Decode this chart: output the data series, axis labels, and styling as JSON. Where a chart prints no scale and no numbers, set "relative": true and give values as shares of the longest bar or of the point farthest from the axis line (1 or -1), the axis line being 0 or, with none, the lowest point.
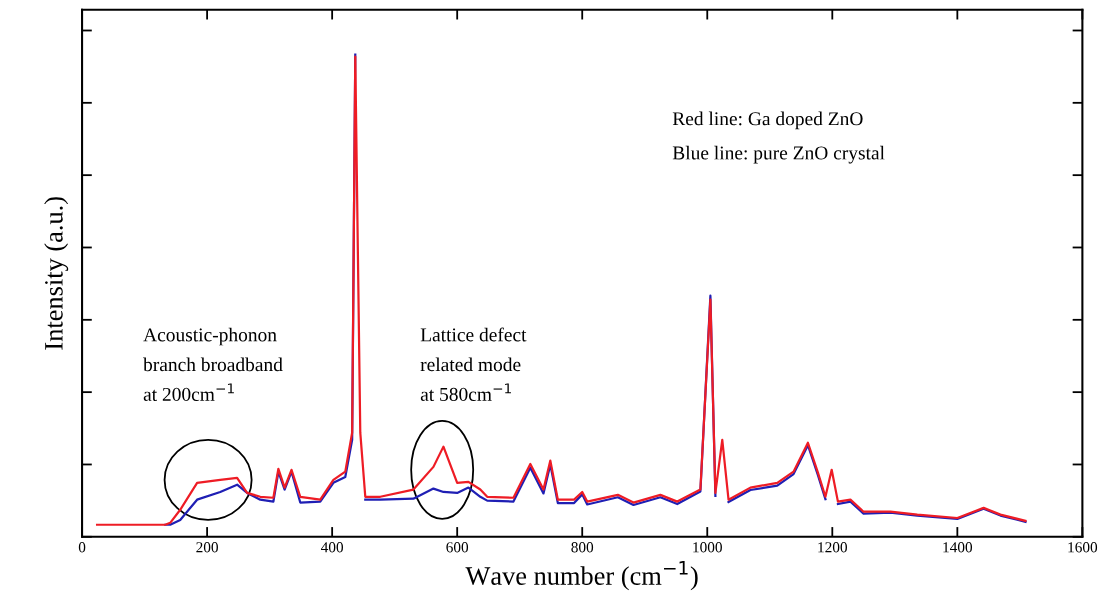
{
  "chart_data": {
    "type": "line",
    "relative": true,
    "xlabel": "Wave number (cm$^{−1}$)",
    "ylabel": "Intensity (a.u.)",
    "xlim": [
      0,
      1600
    ],
    "xticks": [
      0,
      200,
      400,
      600,
      800,
      1000,
      1200,
      1400,
      1600
    ],
    "tick_labels": "x",
    "grid": false,
    "legend": false,
    "marker": "none",
    "line_style": "solid",
    "x": [
      24,
      133,
      141,
      157,
      184,
      221,
      248,
      264,
      285,
      306,
      314,
      324,
      335,
      349,
      381,
      402,
      421,
      432,
      437,
      445,
      453,
      477,
      530,
      562,
      578,
      600,
      618,
      637,
      648,
      690,
      717,
      738,
      749,
      761,
      787,
      800,
      808,
      857,
      882,
      925,
      952,
      989,
      1005,
      1013,
      1024,
      1034,
      1069,
      1112,
      1138,
      1161,
      1177,
      1189,
      1199,
      1209,
      1229,
      1250,
      1293,
      1336,
      1400,
      1442,
      1469,
      1509
    ],
    "series": [
      {
        "color": "#1f1fb4",
        "values": [
          null,
          0.025,
          0.025,
          0.035,
          0.077,
          0.093,
          0.108,
          0.091,
          0.077,
          0.073,
          0.135,
          0.098,
          0.135,
          0.071,
          0.073,
          0.112,
          0.124,
          0.201,
          1,
          null,
          0.077,
          0.077,
          0.079,
          0.1,
          0.093,
          0.091,
          0.102,
          0.083,
          0.075,
          0.073,
          0.143,
          0.09,
          0.15,
          0.07,
          0.07,
          0.088,
          0.067,
          0.082,
          0.066,
          0.082,
          0.068,
          0.094,
          0.5,
          0.085,
          null,
          0.072,
          0.097,
          0.106,
          0.13,
          0.19,
          0.128,
          0.078,
          null,
          0.068,
          0.073,
          0.048,
          0.05,
          0.044,
          0.037,
          0.058,
          0.044,
          0.031
        ]
      },
      {
        "color": "#ee1c25",
        "values": [
          0.025,
          0.025,
          0.029,
          0.056,
          0.112,
          0.118,
          0.122,
          0.091,
          0.083,
          0.081,
          0.141,
          0.102,
          0.139,
          0.083,
          0.077,
          0.118,
          0.135,
          0.216,
          0.996,
          0.216,
          0.083,
          0.083,
          0.098,
          0.145,
          0.187,
          0.112,
          0.114,
          0.098,
          0.083,
          0.081,
          0.151,
          0.098,
          0.158,
          0.077,
          0.077,
          0.093,
          0.073,
          0.087,
          0.071,
          0.087,
          0.073,
          0.098,
          0.492,
          0.091,
          0.201,
          0.077,
          0.102,
          0.112,
          0.135,
          0.195,
          0.133,
          0.083,
          0.139,
          0.073,
          0.077,
          0.052,
          0.052,
          0.046,
          0.039,
          0.06,
          0.046,
          0.033
        ]
      }
    ],
    "annotations": [
      "Red line: Ga doped ZnO",
      "Blue line: pure ZnO crystal",
      "Acoustic-phonon\nbranch broadband\nat 200cm$^{−1}$",
      "Lattice defect\nrelated mode\nat 580cm$^{−1}$"
    ]
  }
}
